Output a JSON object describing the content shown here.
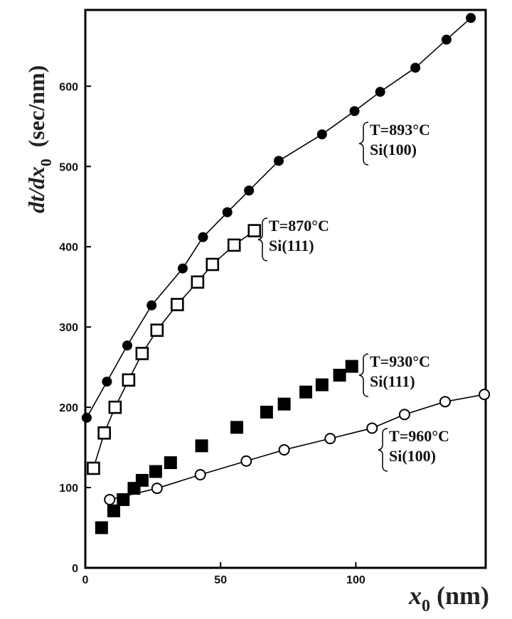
{
  "chart_data": {
    "type": "scatter",
    "xlabel": {
      "italic": "x",
      "sub": "0",
      "unit": " (nm)"
    },
    "ylabel": {
      "italic": "dt/dx",
      "sub": "0",
      "unit": "(sec/nm)"
    },
    "xlim": [
      0,
      148
    ],
    "ylim": [
      0,
      695
    ],
    "xticks": [
      0,
      50,
      100
    ],
    "yticks": [
      0,
      100,
      200,
      300,
      400,
      500,
      600
    ],
    "grid": false,
    "series": [
      {
        "temp": "T=893°C",
        "substrate": "Si(100)",
        "marker": "filled-circle",
        "line": true,
        "x": [
          0.5,
          8,
          15.5,
          24.5,
          36,
          43.5,
          52.5,
          60.5,
          71.5,
          87.5,
          99.5,
          109,
          122,
          133.5,
          142.5
        ],
        "y": [
          187,
          232,
          277,
          327,
          373,
          412,
          443,
          470,
          507,
          540,
          569,
          593,
          623,
          658,
          685
        ]
      },
      {
        "temp": "T=870°C",
        "substrate": "Si(111)",
        "marker": "open-square",
        "line": true,
        "x": [
          3,
          7,
          11,
          16,
          21,
          26.5,
          34,
          41.5,
          47,
          55,
          62.5
        ],
        "y": [
          124,
          168,
          200,
          234,
          267,
          296,
          328,
          356,
          378,
          402,
          420
        ]
      },
      {
        "temp": "T=930°C",
        "substrate": "Si(111)",
        "marker": "filled-square",
        "line": false,
        "x": [
          6,
          10.5,
          14,
          18,
          21,
          26,
          31.5,
          43,
          56,
          67,
          73.5,
          81.5,
          87.5,
          94,
          98.5
        ],
        "y": [
          50,
          71,
          85,
          99,
          109,
          120,
          131,
          152,
          175,
          194,
          204,
          219,
          228,
          240,
          251
        ]
      },
      {
        "temp": "T=960°C",
        "substrate": "Si(100)",
        "marker": "open-circle",
        "line": true,
        "x": [
          9,
          26.5,
          42.5,
          59.5,
          73.5,
          90.5,
          106,
          118,
          133,
          147.5
        ],
        "y": [
          85,
          99,
          116,
          133,
          147,
          161,
          174,
          191,
          207,
          216
        ]
      }
    ]
  }
}
